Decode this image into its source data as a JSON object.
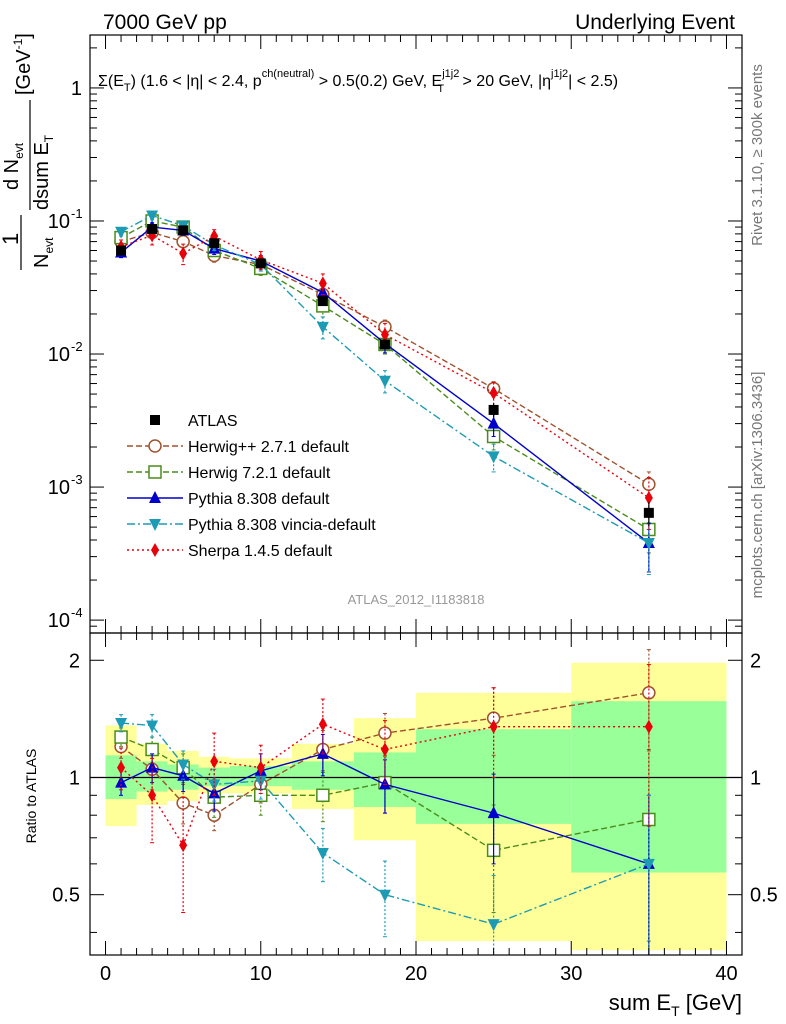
{
  "header": {
    "left": "7000 GeV pp",
    "right": "Underlying Event"
  },
  "side_labels": {
    "rivet": "Rivet 3.1.10, ≥ 300k events",
    "mcplots": "mcplots.cern.ch [arXiv:1306.3436]"
  },
  "watermark": "ATLAS_2012_I1183818",
  "cut_text": "Σ(E_T) (1.6 < |η| < 2.4, p^ch(neutral) > 0.5(0.2) GeV, E_T^j1j2 > 20 GeV, |η^j1j2| < 2.5)",
  "chart_data": [
    {
      "type": "line",
      "panel": "main",
      "ylabel": "1/N_evt dN_evt/dsum E_T [GeV^-1]",
      "xlabel": "",
      "log_y": true,
      "xlim": [
        -1,
        41
      ],
      "ylim": [
        8e-05,
        2.5
      ],
      "y_ticks": [
        {
          "value": 0.0001,
          "label": "10^-4"
        },
        {
          "value": 0.001,
          "label": "10^-3"
        },
        {
          "value": 0.01,
          "label": "10^-2"
        },
        {
          "value": 0.1,
          "label": "10^-1"
        },
        {
          "value": 1,
          "label": "1"
        }
      ],
      "reference": {
        "name": "ATLAS",
        "x": [
          1,
          3,
          5,
          7,
          10,
          14,
          18,
          25,
          35
        ],
        "y": [
          0.06,
          0.087,
          0.085,
          0.068,
          0.048,
          0.025,
          0.0118,
          0.0038,
          0.00064
        ],
        "band_edges": [
          0,
          2,
          4,
          6,
          8,
          12,
          16,
          20,
          30,
          40
        ],
        "rel_err": [
          0.06,
          0.05,
          0.05,
          0.05,
          0.05,
          0.06,
          0.08,
          0.12,
          0.2
        ]
      },
      "series": [
        {
          "name": "Herwig++ 2.7.1 default",
          "color": "#a0522d",
          "marker": "open-circle",
          "dash": "dashed",
          "x": [
            1,
            3,
            5,
            7,
            10,
            14,
            18,
            25,
            35
          ],
          "y": [
            0.07,
            0.082,
            0.07,
            0.055,
            0.047,
            0.028,
            0.016,
            0.0055,
            0.00105
          ],
          "err": [
            0.006,
            0.007,
            0.007,
            0.006,
            0.005,
            0.004,
            0.002,
            0.0007,
            0.00025
          ]
        },
        {
          "name": "Herwig 7.2.1 default",
          "color": "#4a8c1c",
          "marker": "open-square",
          "dash": "dashed",
          "x": [
            1,
            3,
            5,
            7,
            10,
            14,
            18,
            25,
            35
          ],
          "y": [
            0.075,
            0.1,
            0.09,
            0.06,
            0.044,
            0.023,
            0.0118,
            0.0024,
            0.00048
          ],
          "err": [
            0.006,
            0.008,
            0.008,
            0.006,
            0.005,
            0.004,
            0.0018,
            0.0005,
            0.00016
          ]
        },
        {
          "name": "Pythia 8.308 default",
          "color": "#0000cc",
          "marker": "triangle-up",
          "dash": "solid",
          "x": [
            1,
            3,
            5,
            7,
            10,
            14,
            18,
            25,
            35
          ],
          "y": [
            0.058,
            0.09,
            0.085,
            0.062,
            0.05,
            0.029,
            0.012,
            0.003,
            0.00038
          ],
          "err": [
            0.005,
            0.007,
            0.007,
            0.006,
            0.005,
            0.004,
            0.0018,
            0.0006,
            0.00015
          ]
        },
        {
          "name": "Pythia 8.308 vincia-default",
          "color": "#1e9bb4",
          "marker": "triangle-down",
          "dash": "dashdot",
          "x": [
            1,
            3,
            5,
            7,
            10,
            14,
            18,
            25,
            35
          ],
          "y": [
            0.083,
            0.11,
            0.092,
            0.066,
            0.047,
            0.016,
            0.0063,
            0.0017,
            0.00038
          ],
          "err": [
            0.006,
            0.008,
            0.008,
            0.006,
            0.005,
            0.003,
            0.0012,
            0.0004,
            0.00016
          ]
        },
        {
          "name": "Sherpa 1.4.5 default",
          "color": "#e8000b",
          "marker": "diamond",
          "dash": "dotted",
          "x": [
            1,
            3,
            5,
            7,
            10,
            14,
            18,
            25,
            35
          ],
          "y": [
            0.064,
            0.078,
            0.057,
            0.077,
            0.051,
            0.034,
            0.014,
            0.0051,
            0.00083
          ],
          "err": [
            0.008,
            0.012,
            0.01,
            0.009,
            0.008,
            0.006,
            0.003,
            0.001,
            0.00035
          ]
        }
      ]
    },
    {
      "type": "line",
      "panel": "ratio",
      "ylabel": "Ratio to ATLAS",
      "xlabel": "sum E_T [GeV]",
      "xlim": [
        -1,
        41
      ],
      "ylim": [
        0.35,
        2.35
      ],
      "x_ticks": [
        0,
        10,
        20,
        30,
        40
      ],
      "y_ticks": [
        {
          "value": 0.5,
          "label": "0.5"
        },
        {
          "value": 1,
          "label": "1"
        },
        {
          "value": 2,
          "label": "2"
        }
      ],
      "bands": {
        "edges": [
          0,
          2,
          4,
          6,
          8,
          12,
          16,
          20,
          30,
          40
        ],
        "green_lo": [
          0.88,
          0.92,
          0.93,
          0.95,
          0.95,
          0.93,
          0.84,
          0.76,
          0.57
        ],
        "green_hi": [
          1.14,
          1.1,
          1.08,
          1.06,
          1.07,
          1.1,
          1.16,
          1.33,
          1.57
        ],
        "yellow_lo": [
          0.75,
          0.85,
          0.87,
          0.91,
          0.91,
          0.83,
          0.69,
          0.38,
          0.36
        ],
        "yellow_hi": [
          1.36,
          1.22,
          1.17,
          1.13,
          1.12,
          1.22,
          1.42,
          1.65,
          1.97
        ]
      },
      "series": [
        {
          "name": "Herwig++ 2.7.1 default",
          "color": "#a0522d",
          "marker": "open-circle",
          "dash": "dashed",
          "x": [
            1,
            3,
            5,
            7,
            10,
            14,
            18,
            25,
            35
          ],
          "y": [
            1.2,
            1.05,
            0.86,
            0.8,
            0.96,
            1.18,
            1.3,
            1.42,
            1.65
          ],
          "err": [
            0.08,
            0.12,
            0.1,
            0.07,
            0.1,
            0.14,
            0.16,
            0.28,
            0.48
          ]
        },
        {
          "name": "Herwig 7.2.1 default",
          "color": "#4a8c1c",
          "marker": "open-square",
          "dash": "dashed",
          "x": [
            1,
            3,
            5,
            7,
            10,
            14,
            18,
            25,
            35
          ],
          "y": [
            1.27,
            1.18,
            1.06,
            0.89,
            0.9,
            0.9,
            0.97,
            0.65,
            0.78
          ],
          "err": [
            0.07,
            0.09,
            0.09,
            0.1,
            0.1,
            0.13,
            0.16,
            0.2,
            0.4
          ]
        },
        {
          "name": "Pythia 8.308 default",
          "color": "#0000cc",
          "marker": "triangle-up",
          "dash": "solid",
          "x": [
            1,
            3,
            5,
            7,
            10,
            14,
            18,
            25,
            35
          ],
          "y": [
            0.97,
            1.06,
            1.01,
            0.91,
            1.04,
            1.15,
            0.96,
            0.81,
            0.6
          ],
          "err": [
            0.07,
            0.09,
            0.09,
            0.09,
            0.11,
            0.14,
            0.15,
            0.21,
            0.3
          ]
        },
        {
          "name": "Pythia 8.308 vincia-default",
          "color": "#1e9bb4",
          "marker": "triangle-down",
          "dash": "dashdot",
          "x": [
            1,
            3,
            5,
            7,
            10,
            14,
            18,
            25,
            35
          ],
          "y": [
            1.38,
            1.36,
            1.08,
            0.96,
            0.98,
            0.64,
            0.5,
            0.42,
            0.6
          ],
          "err": [
            0.07,
            0.09,
            0.09,
            0.09,
            0.1,
            0.1,
            0.11,
            0.14,
            0.3
          ]
        },
        {
          "name": "Sherpa 1.4.5 default",
          "color": "#e8000b",
          "marker": "diamond",
          "dash": "dotted",
          "x": [
            1,
            3,
            5,
            7,
            10,
            14,
            18,
            25,
            35
          ],
          "y": [
            1.06,
            0.9,
            0.67,
            1.1,
            1.06,
            1.37,
            1.18,
            1.35,
            1.35
          ],
          "err": [
            0.13,
            0.22,
            0.22,
            0.2,
            0.15,
            0.22,
            0.22,
            0.35,
            0.6
          ]
        }
      ]
    }
  ]
}
